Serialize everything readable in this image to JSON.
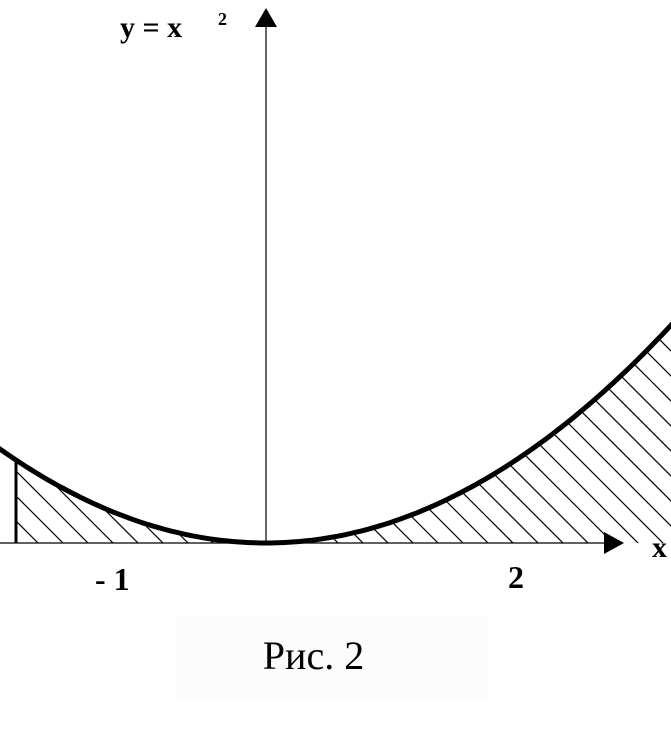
{
  "figure": {
    "function_label": "y = x",
    "function_exponent": "2",
    "x_axis_label": "x",
    "left_bound_label": "- 1",
    "right_bound_label": "2",
    "caption": "Рис. 2"
  },
  "chart_data": {
    "type": "area",
    "function": "x^2",
    "shaded_interval": [
      -1,
      2
    ],
    "xlim": [
      -1.8,
      2.7
    ],
    "ylim": [
      0,
      3.6
    ],
    "tick_labels": [
      "- 1",
      "2"
    ]
  }
}
